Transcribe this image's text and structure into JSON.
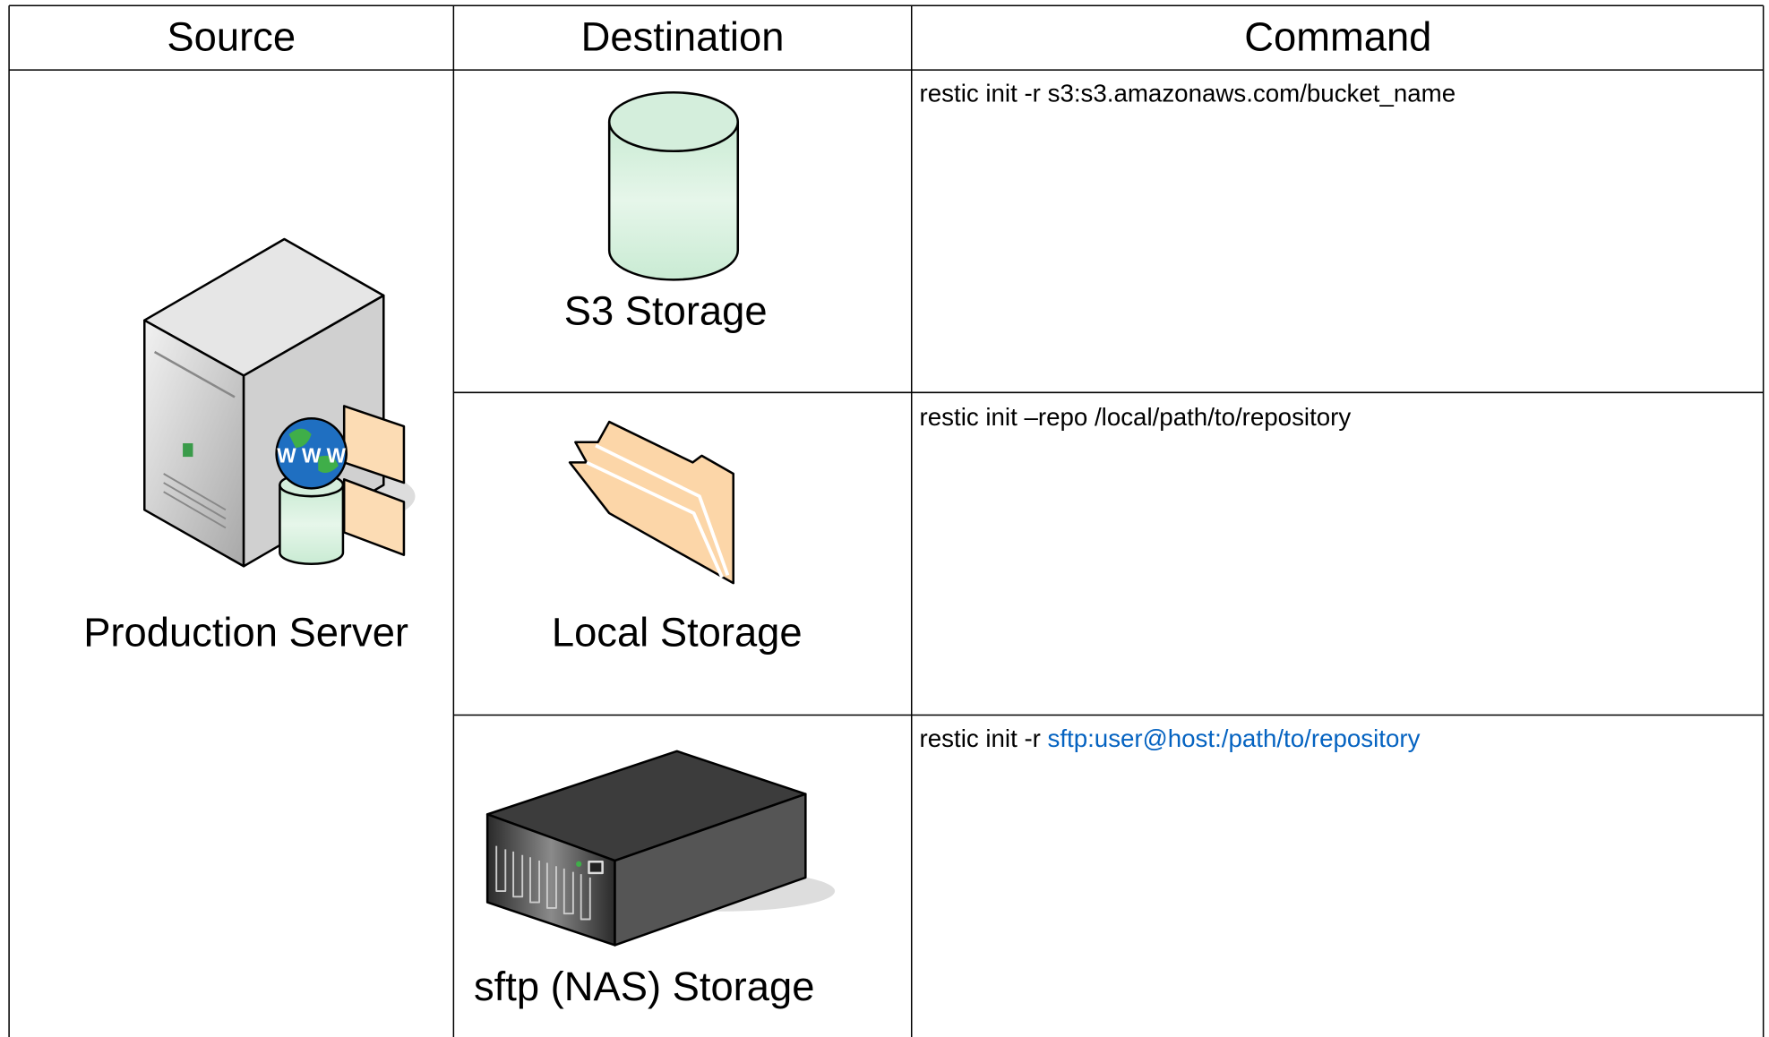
{
  "table": {
    "headers": [
      "Source",
      "Destination",
      "Command"
    ],
    "source": "Production Server",
    "rows": [
      {
        "destination": "S3 Storage",
        "command": "restic init -r s3:s3.amazonaws.com/bucket_name"
      },
      {
        "destination": "Local Storage",
        "command": "restic init –repo /local/path/to/repository"
      },
      {
        "destination": "sftp (NAS) Storage",
        "command": "restic init -r",
        "link": "sftp:user@host:/path/to/repository"
      }
    ]
  }
}
